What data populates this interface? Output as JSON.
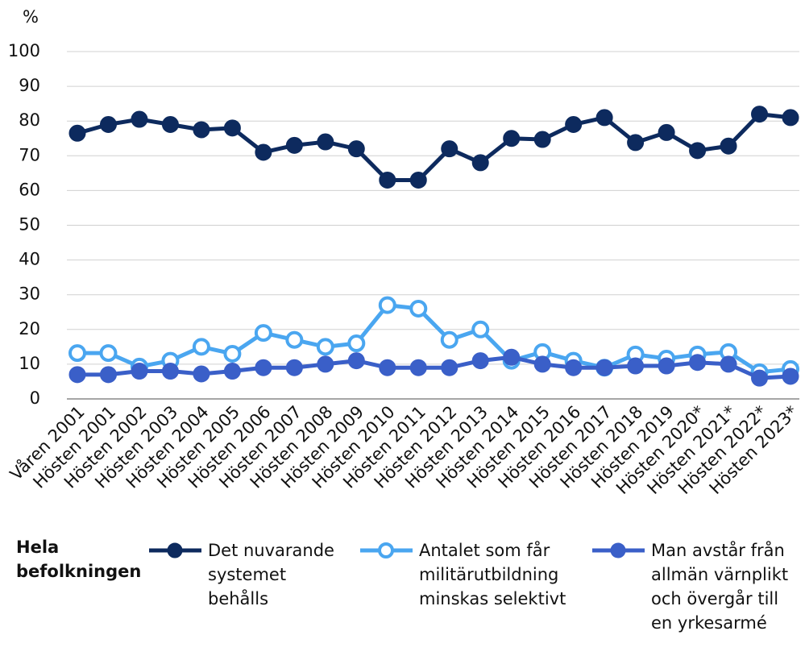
{
  "chart_data": {
    "type": "line",
    "y_axis_label": "%",
    "legend_title": "Hela befolkningen",
    "categories": [
      "Våren 2001",
      "Hösten 2001",
      "Hösten 2002",
      "Hösten 2003",
      "Hösten 2004",
      "Hösten 2005",
      "Hösten 2006",
      "Hösten 2007",
      "Hösten 2008",
      "Hösten 2009",
      "Hösten 2010",
      "Hösten 2011",
      "Hösten 2012",
      "Hösten 2013",
      "Hösten 2014",
      "Hösten 2015",
      "Hösten 2016",
      "Hösten 2017",
      "Hösten 2018",
      "Hösten 2019",
      "Hösten 2020*",
      "Hösten 2021*",
      "Hösten 2022*",
      "Hösten 2023*"
    ],
    "series": [
      {
        "name": "Det nuvarande systemet behålls",
        "color": "#0d2a5e",
        "marker": "filled",
        "values": [
          76.5,
          79,
          80.5,
          79,
          77.5,
          78,
          71,
          73,
          74,
          72,
          63,
          63,
          72,
          68,
          75,
          74.7,
          79,
          81,
          73.8,
          76.7,
          71.5,
          72.8,
          82,
          81
        ]
      },
      {
        "name": "Antalet som får militärutbildning minskas selektivt",
        "color": "#4aa6f0",
        "marker": "open",
        "values": [
          13.2,
          13.2,
          9.3,
          11,
          15,
          13,
          19,
          17,
          15,
          16,
          27,
          26,
          17,
          20,
          11,
          13.5,
          11,
          9,
          12.8,
          11.6,
          12.8,
          13.5,
          7.7,
          8.6
        ]
      },
      {
        "name": "Man avstår från allmän värnplikt och övergår till en yrkesarmé",
        "color": "#3a5fc8",
        "marker": "filled",
        "values": [
          7,
          7,
          8,
          8,
          7.2,
          8,
          9,
          9,
          10,
          11,
          9,
          9,
          9,
          11,
          12,
          10,
          9,
          9,
          9.5,
          9.5,
          10.5,
          10,
          6,
          6.5
        ]
      }
    ],
    "ylim": [
      0,
      100
    ],
    "yticks": [
      0,
      10,
      20,
      30,
      40,
      50,
      60,
      70,
      80,
      90,
      100
    ],
    "grid": true
  }
}
